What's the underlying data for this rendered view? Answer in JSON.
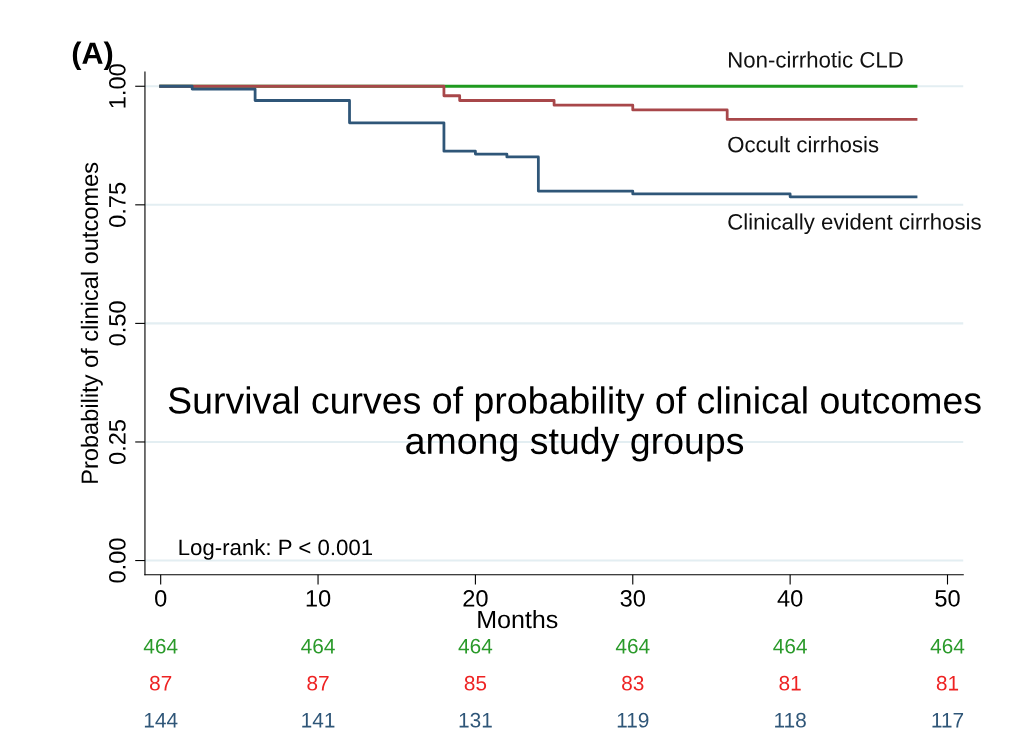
{
  "chart_data": {
    "type": "step",
    "title": "(A)",
    "subtitle": "Survival curves of probability of clinical outcomes among study groups",
    "xlabel": "Months",
    "ylabel": "Probability of clinical outcomes",
    "series": [
      {
        "name": "Non-cirrhotic CLD",
        "color": "#1f9a1f",
        "x": [
          0,
          48
        ],
        "values": [
          1.0,
          1.0
        ]
      },
      {
        "name": "Occult cirrhosis",
        "color": "#a8474a",
        "x": [
          0,
          18,
          19,
          25,
          30,
          36,
          48
        ],
        "values": [
          1.0,
          0.98,
          0.97,
          0.96,
          0.95,
          0.93,
          0.93
        ]
      },
      {
        "name": "Clinically evident cirrhosis",
        "color": "#2f5678",
        "x": [
          0,
          2,
          6,
          12,
          18,
          20,
          22,
          24,
          30,
          40,
          48
        ],
        "values": [
          1.0,
          0.994,
          0.97,
          0.923,
          0.863,
          0.857,
          0.851,
          0.779,
          0.773,
          0.767,
          0.767
        ]
      }
    ],
    "xlim": [
      -1,
      51
    ],
    "xticks": [
      0,
      10,
      20,
      30,
      40,
      50
    ],
    "ylim": [
      -0.03,
      1.03
    ],
    "yticks": [
      {
        "value": 0,
        "label": "0.00"
      },
      {
        "value": 0.25,
        "label": "0.25"
      },
      {
        "value": 0.5,
        "label": "0.50"
      },
      {
        "value": 0.75,
        "label": "0.75"
      },
      {
        "value": 1.0,
        "label": "1.00"
      }
    ],
    "grid": "y",
    "legend": false,
    "annotations": [
      "Log-rank: P < 0.001",
      "464",
      "464",
      "464",
      "464",
      "464",
      "464",
      "87",
      "87",
      "85",
      "83",
      "81",
      "81",
      "144",
      "141",
      "131",
      "119",
      "118",
      "117"
    ]
  }
}
